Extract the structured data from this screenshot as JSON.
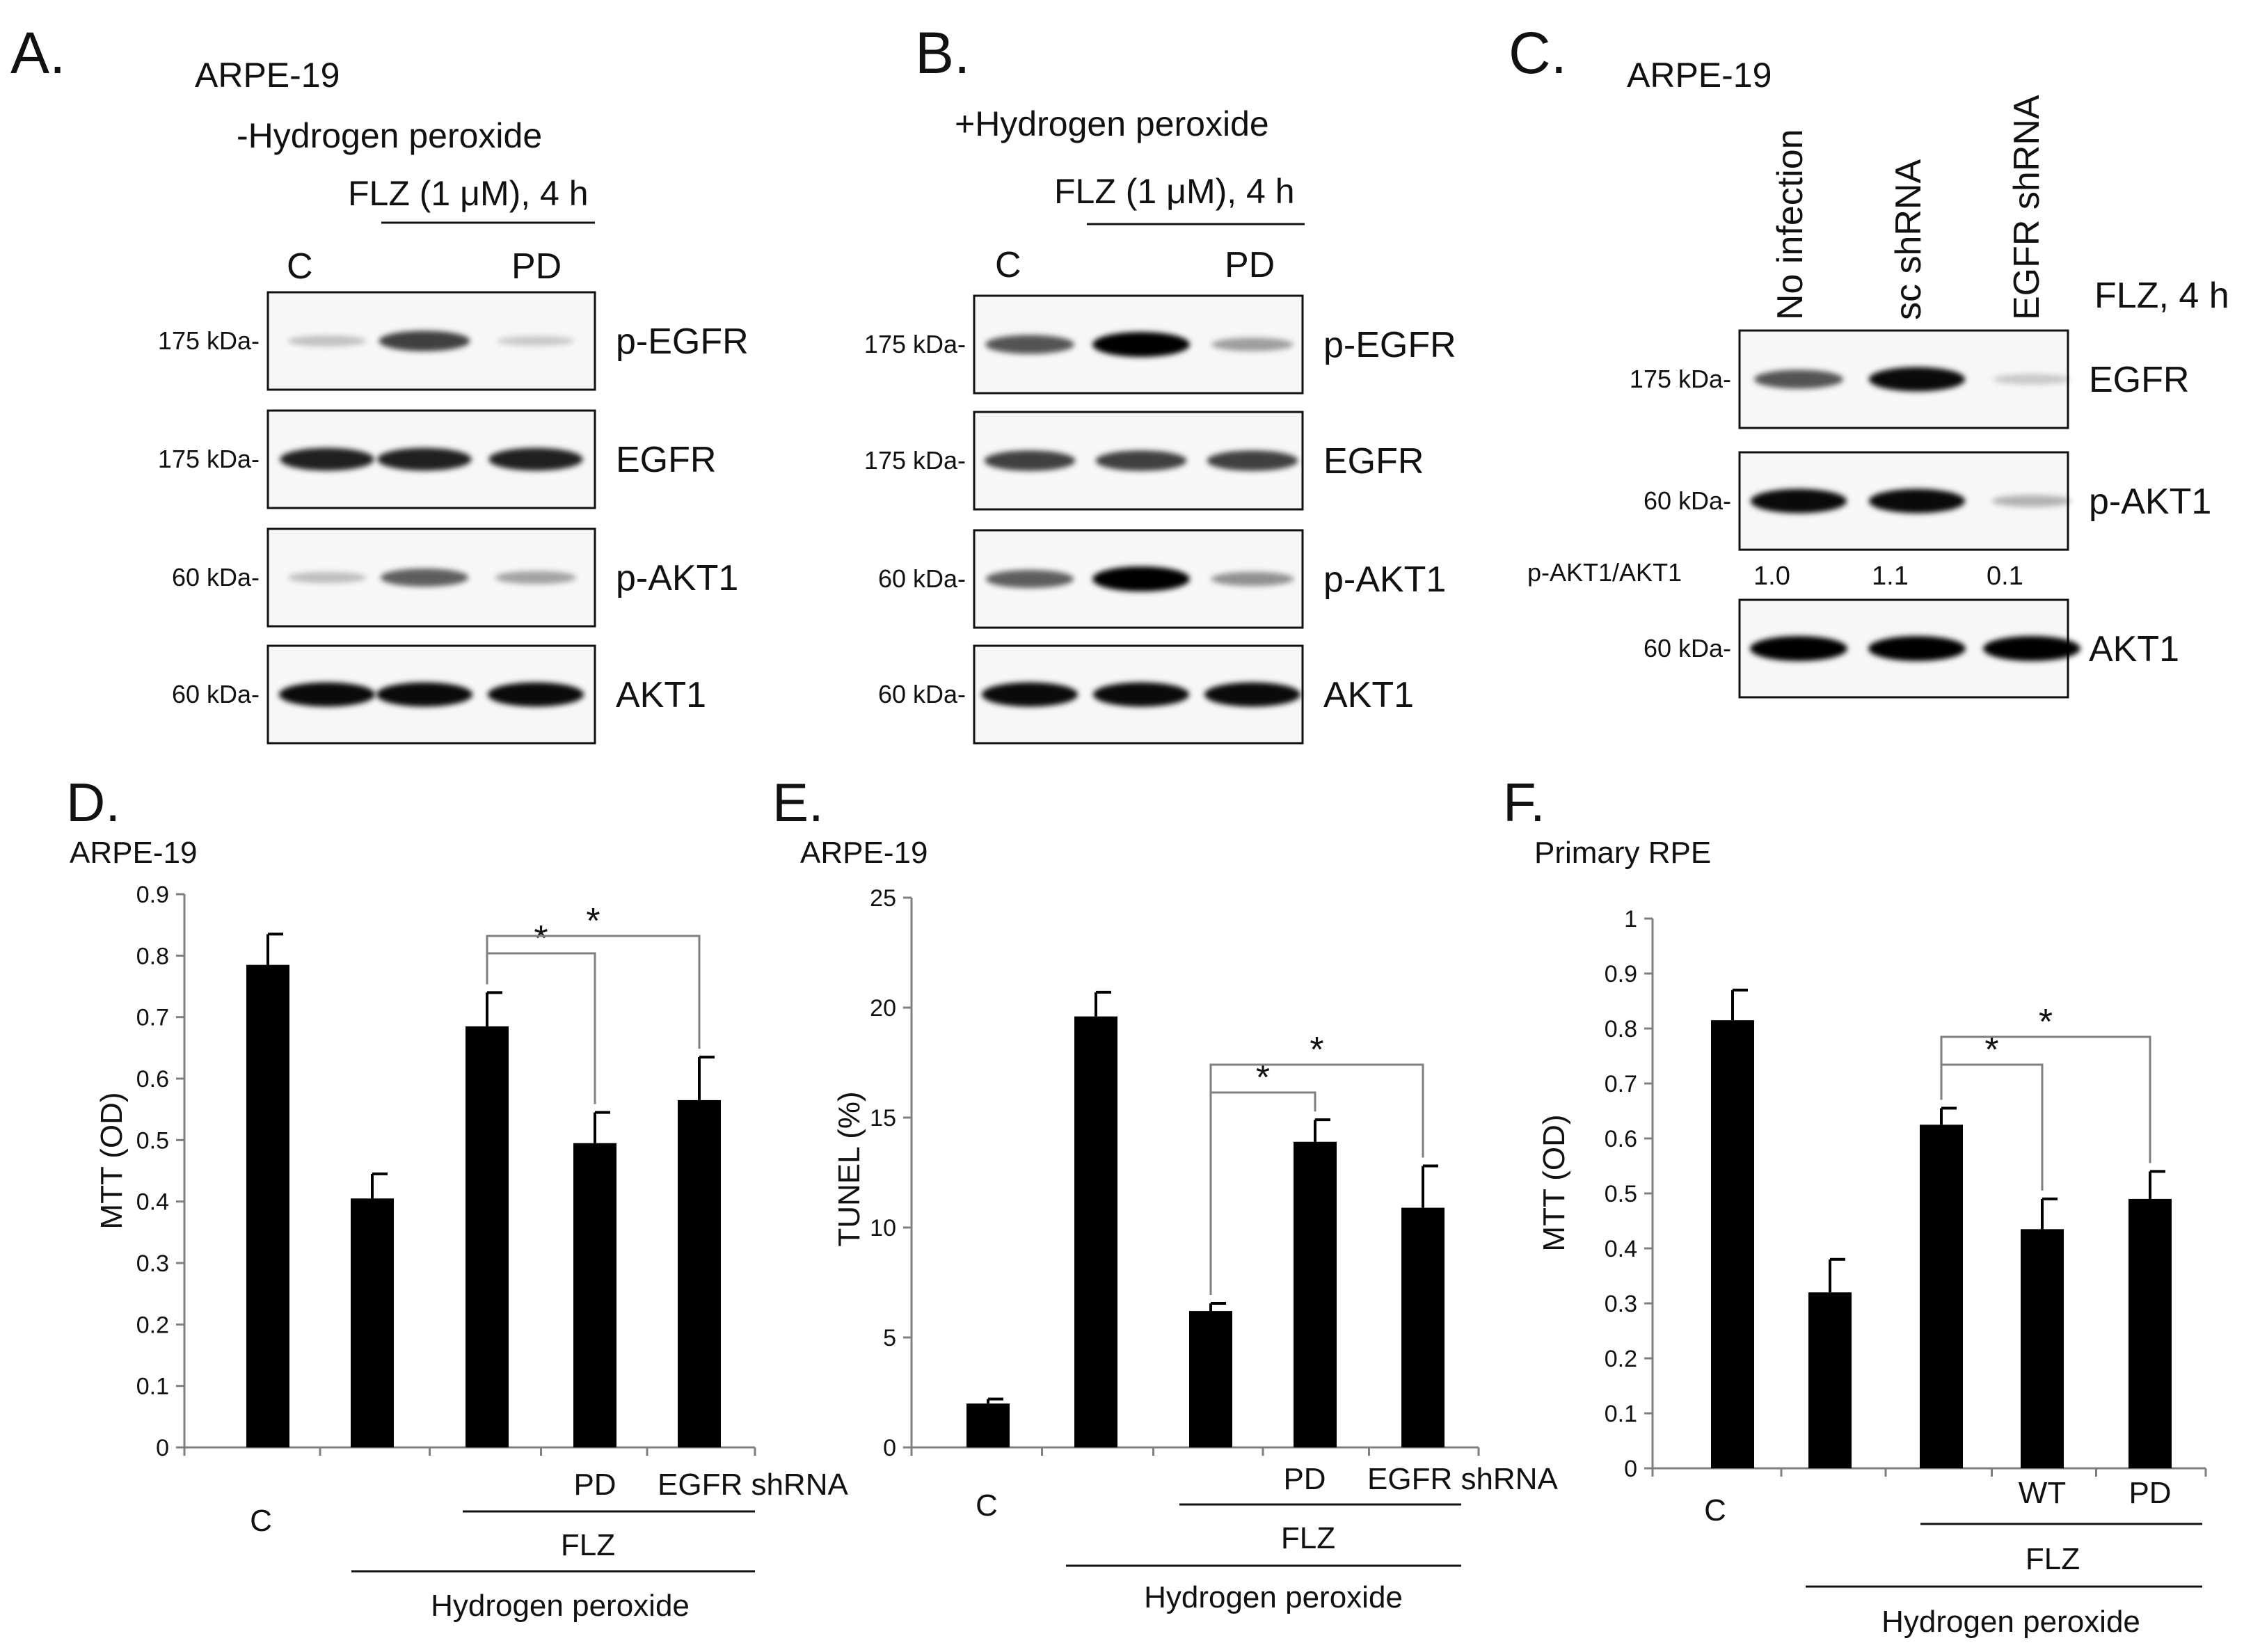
{
  "colors": {
    "bar": "#000000",
    "axis": "#7f7f7f",
    "blot_bg": "#f7f7f7"
  },
  "panel_a": {
    "letter": "A.",
    "cell": "ARPE-19",
    "condition": "-Hydrogen peroxide",
    "treatment": "FLZ (1 μM), 4 h",
    "lane_c": "C",
    "lane_pd": "PD",
    "rows": [
      {
        "label": "p-EGFR",
        "kda": "175 kDa-",
        "intensity": [
          0.08,
          0.7,
          0.03
        ]
      },
      {
        "label": "EGFR",
        "kda": "175 kDa-",
        "intensity": [
          0.85,
          0.85,
          0.85
        ]
      },
      {
        "label": "p-AKT1",
        "kda": "60 kDa-",
        "intensity": [
          0.1,
          0.55,
          0.22
        ]
      },
      {
        "label": "AKT1",
        "kda": "60 kDa-",
        "intensity": [
          0.95,
          0.95,
          0.95
        ]
      }
    ]
  },
  "panel_b": {
    "letter": "B.",
    "condition": "+Hydrogen peroxide",
    "treatment": "FLZ (1 μM), 4 h",
    "lane_c": "C",
    "lane_pd": "PD",
    "rows": [
      {
        "label": "p-EGFR",
        "kda": "175 kDa-",
        "intensity": [
          0.6,
          1.0,
          0.25
        ]
      },
      {
        "label": "EGFR",
        "kda": "175 kDa-",
        "intensity": [
          0.7,
          0.7,
          0.7
        ]
      },
      {
        "label": "p-AKT1",
        "kda": "60 kDa-",
        "intensity": [
          0.55,
          1.0,
          0.3
        ]
      },
      {
        "label": "AKT1",
        "kda": "60 kDa-",
        "intensity": [
          0.95,
          0.95,
          0.95
        ]
      }
    ]
  },
  "panel_c": {
    "letter": "C.",
    "cell": "ARPE-19",
    "lanes": [
      "No infection",
      "sc shRNA",
      "EGFR shRNA"
    ],
    "treatment": "FLZ, 4 h",
    "ratio_label": "p-AKT1/AKT1",
    "ratios": [
      "1.0",
      "1.1",
      "0.1"
    ],
    "rows": [
      {
        "label": "EGFR",
        "kda": "175 kDa-",
        "intensity": [
          0.6,
          0.95,
          0.05
        ]
      },
      {
        "label": "p-AKT1",
        "kda": "60 kDa-",
        "intensity": [
          0.95,
          0.95,
          0.15
        ]
      },
      {
        "label": "AKT1",
        "kda": "60 kDa-",
        "intensity": [
          1.0,
          1.0,
          1.0
        ]
      }
    ]
  },
  "chart_data": [
    {
      "type": "bar",
      "panel": "D.",
      "title": "ARPE-19",
      "ylabel": "MTT (OD)",
      "ylim": [
        0,
        0.9
      ],
      "yticks": [
        "0",
        "0.1",
        "0.2",
        "0.3",
        "0.4",
        "0.5",
        "0.6",
        "0.7",
        "0.8",
        "0.9"
      ],
      "values": [
        0.785,
        0.405,
        0.685,
        0.495,
        0.565
      ],
      "errors": [
        0.05,
        0.04,
        0.055,
        0.05,
        0.07
      ],
      "labels": {
        "c": "C",
        "pd": "PD",
        "shrna": "EGFR shRNA",
        "flz": "FLZ",
        "h2o2": "Hydrogen peroxide"
      },
      "sig": [
        "*",
        "*"
      ]
    },
    {
      "type": "bar",
      "panel": "E.",
      "title": "ARPE-19",
      "ylabel": "TUNEL (%)",
      "ylim": [
        0,
        25
      ],
      "yticks": [
        "0",
        "5",
        "10",
        "15",
        "20",
        "25"
      ],
      "values": [
        2.0,
        19.6,
        6.2,
        13.9,
        10.9
      ],
      "errors": [
        0.2,
        1.1,
        0.35,
        1.0,
        1.9
      ],
      "labels": {
        "c": "C",
        "pd": "PD",
        "shrna": "EGFR shRNA",
        "flz": "FLZ",
        "h2o2": "Hydrogen peroxide"
      },
      "sig": [
        "*",
        "*"
      ]
    },
    {
      "type": "bar",
      "panel": "F.",
      "title": "Primary RPE",
      "ylabel": "MTT (OD)",
      "ylim": [
        0,
        1
      ],
      "yticks": [
        "0",
        "0.1",
        "0.2",
        "0.3",
        "0.4",
        "0.5",
        "0.6",
        "0.7",
        "0.8",
        "0.9",
        "1"
      ],
      "values": [
        0.815,
        0.32,
        0.625,
        0.435,
        0.49
      ],
      "errors": [
        0.055,
        0.06,
        0.03,
        0.055,
        0.05
      ],
      "labels": {
        "c": "C",
        "wt": "WT",
        "pd": "PD",
        "flz": "FLZ",
        "h2o2": "Hydrogen peroxide"
      },
      "sig": [
        "*",
        "*"
      ]
    }
  ]
}
